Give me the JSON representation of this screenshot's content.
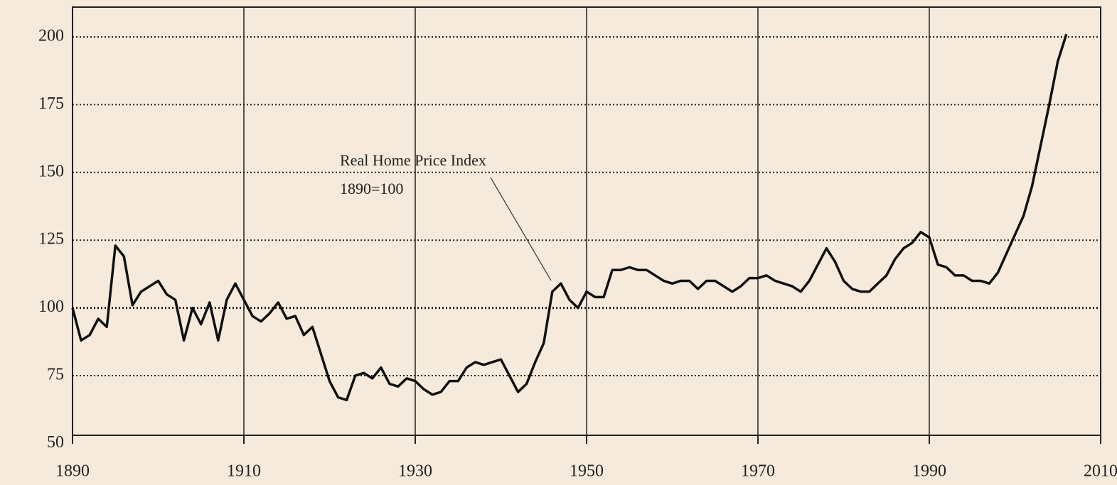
{
  "chart_data": {
    "type": "line",
    "annotation": [
      "Real Home Price Index",
      "1890=100"
    ],
    "x": [
      1890,
      1891,
      1892,
      1893,
      1894,
      1895,
      1896,
      1897,
      1898,
      1899,
      1900,
      1901,
      1902,
      1903,
      1904,
      1905,
      1906,
      1907,
      1908,
      1909,
      1910,
      1911,
      1912,
      1913,
      1914,
      1915,
      1916,
      1917,
      1918,
      1919,
      1920,
      1921,
      1922,
      1923,
      1924,
      1925,
      1926,
      1927,
      1928,
      1929,
      1930,
      1931,
      1932,
      1933,
      1934,
      1935,
      1936,
      1937,
      1938,
      1939,
      1940,
      1941,
      1942,
      1943,
      1944,
      1945,
      1946,
      1947,
      1948,
      1949,
      1950,
      1951,
      1952,
      1953,
      1954,
      1955,
      1956,
      1957,
      1958,
      1959,
      1960,
      1961,
      1962,
      1963,
      1964,
      1965,
      1966,
      1967,
      1968,
      1969,
      1970,
      1971,
      1972,
      1973,
      1974,
      1975,
      1976,
      1977,
      1978,
      1979,
      1980,
      1981,
      1982,
      1983,
      1984,
      1985,
      1986,
      1987,
      1988,
      1989,
      1990,
      1991,
      1992,
      1993,
      1994,
      1995,
      1996,
      1997,
      1998,
      1999,
      2000,
      2001,
      2002,
      2003,
      2004,
      2005,
      2006
    ],
    "series": [
      {
        "color": "#111111",
        "values": [
          100,
          88,
          90,
          96,
          93,
          123,
          119,
          101,
          106,
          108,
          110,
          105,
          103,
          88,
          100,
          94,
          102,
          88,
          103,
          109,
          103,
          97,
          95,
          98,
          102,
          96,
          97,
          90,
          93,
          83,
          73,
          67,
          66,
          75,
          76,
          74,
          78,
          72,
          71,
          74,
          73,
          70,
          68,
          69,
          73,
          73,
          78,
          80,
          79,
          80,
          81,
          75,
          69,
          72,
          80,
          87,
          106,
          109,
          103,
          100,
          106,
          104,
          104,
          114,
          114,
          115,
          114,
          114,
          112,
          110,
          109,
          110,
          110,
          107,
          110,
          110,
          108,
          106,
          108,
          111,
          111,
          112,
          110,
          109,
          108,
          106,
          110,
          116,
          122,
          117,
          110,
          107,
          106,
          106,
          109,
          112,
          118,
          122,
          124,
          128,
          126,
          116,
          115,
          112,
          112,
          110,
          110,
          109,
          113,
          120,
          127,
          134,
          145,
          160,
          175,
          191,
          201
        ]
      }
    ],
    "xlim": [
      1890,
      2010
    ],
    "xticks": [
      1890,
      1910,
      1930,
      1950,
      1970,
      1990,
      2010
    ],
    "ylim": [
      53,
      211
    ],
    "yticks": [
      50,
      75,
      100,
      125,
      150,
      175,
      200
    ],
    "grid": true
  }
}
